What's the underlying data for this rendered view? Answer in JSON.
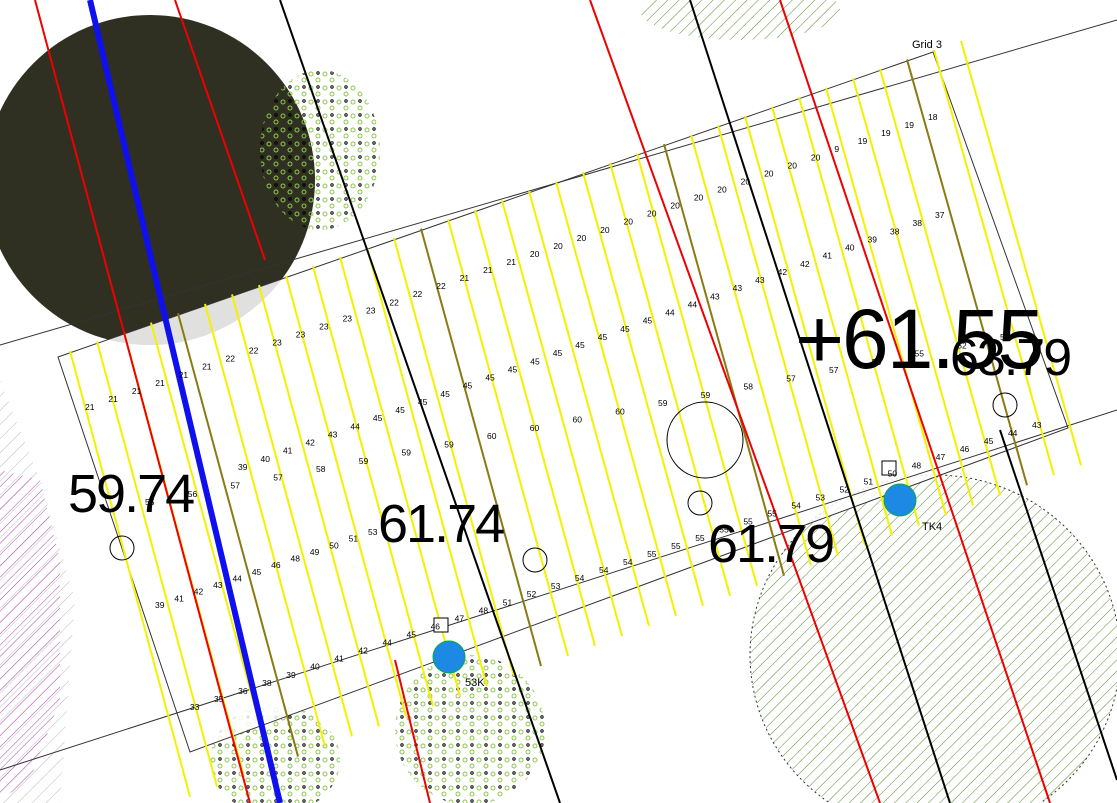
{
  "grid_label": "Grid 3",
  "spot_levels": [
    "59.74",
    "61.74",
    "61.79",
    "+61.55",
    "63.79"
  ],
  "stations": [
    "53K",
    "TK4"
  ],
  "contour_rows": [
    [
      21,
      21,
      21,
      21,
      21,
      21,
      22,
      22,
      23,
      23,
      23,
      23,
      23,
      22,
      22,
      22,
      21,
      21,
      21,
      20,
      20,
      20,
      20,
      20,
      20,
      20,
      20,
      20,
      20,
      20,
      20,
      20,
      9,
      19,
      19,
      19,
      18
    ],
    [
      39,
      40,
      41,
      42,
      43,
      44,
      45,
      45,
      45,
      45,
      45,
      45,
      45,
      45,
      45,
      45,
      45,
      45,
      45,
      44,
      44,
      43,
      43,
      43,
      42,
      42,
      41,
      40,
      39,
      38,
      38,
      37
    ],
    [
      55,
      56,
      57,
      57,
      58,
      59,
      59,
      59,
      60,
      60,
      60,
      60,
      59,
      59,
      58,
      57,
      57,
      56,
      55,
      52,
      50
    ],
    [
      39,
      41,
      42,
      43,
      44,
      45,
      46,
      48,
      49,
      50,
      51,
      53
    ],
    [
      33,
      35,
      36,
      38,
      39,
      40,
      41,
      42,
      44,
      45,
      46,
      47,
      48,
      51,
      52,
      53,
      54,
      54,
      54,
      55,
      55,
      55,
      55,
      55,
      55,
      54,
      53,
      52,
      51,
      50,
      48,
      47,
      46,
      45,
      44,
      43
    ]
  ]
}
